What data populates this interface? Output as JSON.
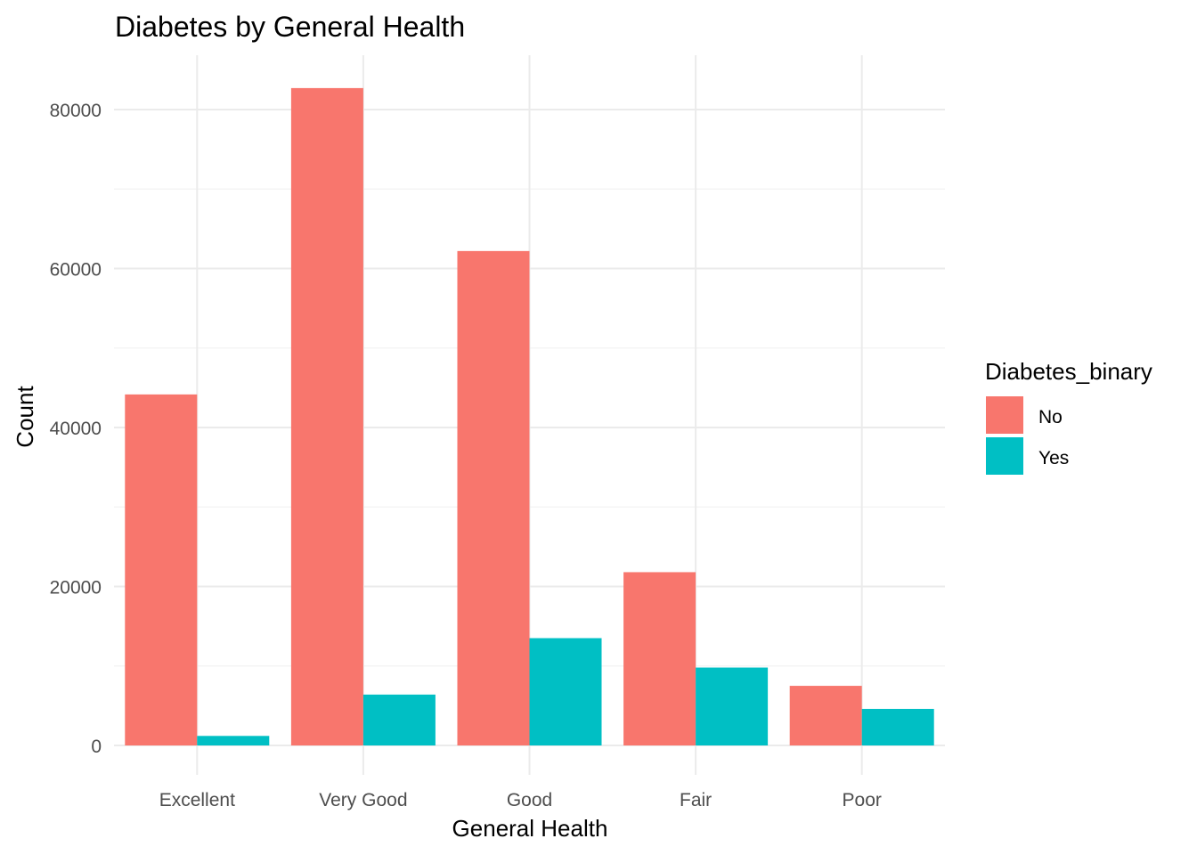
{
  "chart_data": {
    "type": "bar",
    "title": "Diabetes by General Health",
    "xlabel": "General Health",
    "ylabel": "Count",
    "categories": [
      "Excellent",
      "Very Good",
      "Good",
      "Fair",
      "Poor"
    ],
    "series": [
      {
        "name": "No",
        "color": "#F8766D",
        "values": [
          44160,
          82700,
          62200,
          21800,
          7500
        ]
      },
      {
        "name": "Yes",
        "color": "#00BFC4",
        "values": [
          1200,
          6400,
          13500,
          9800,
          4600
        ]
      }
    ],
    "ylim": [
      0,
      80000
    ],
    "yticks": [
      0,
      20000,
      40000,
      60000,
      80000
    ],
    "grid": true,
    "legend": {
      "title": "Diabetes_binary",
      "placement": "right"
    }
  }
}
